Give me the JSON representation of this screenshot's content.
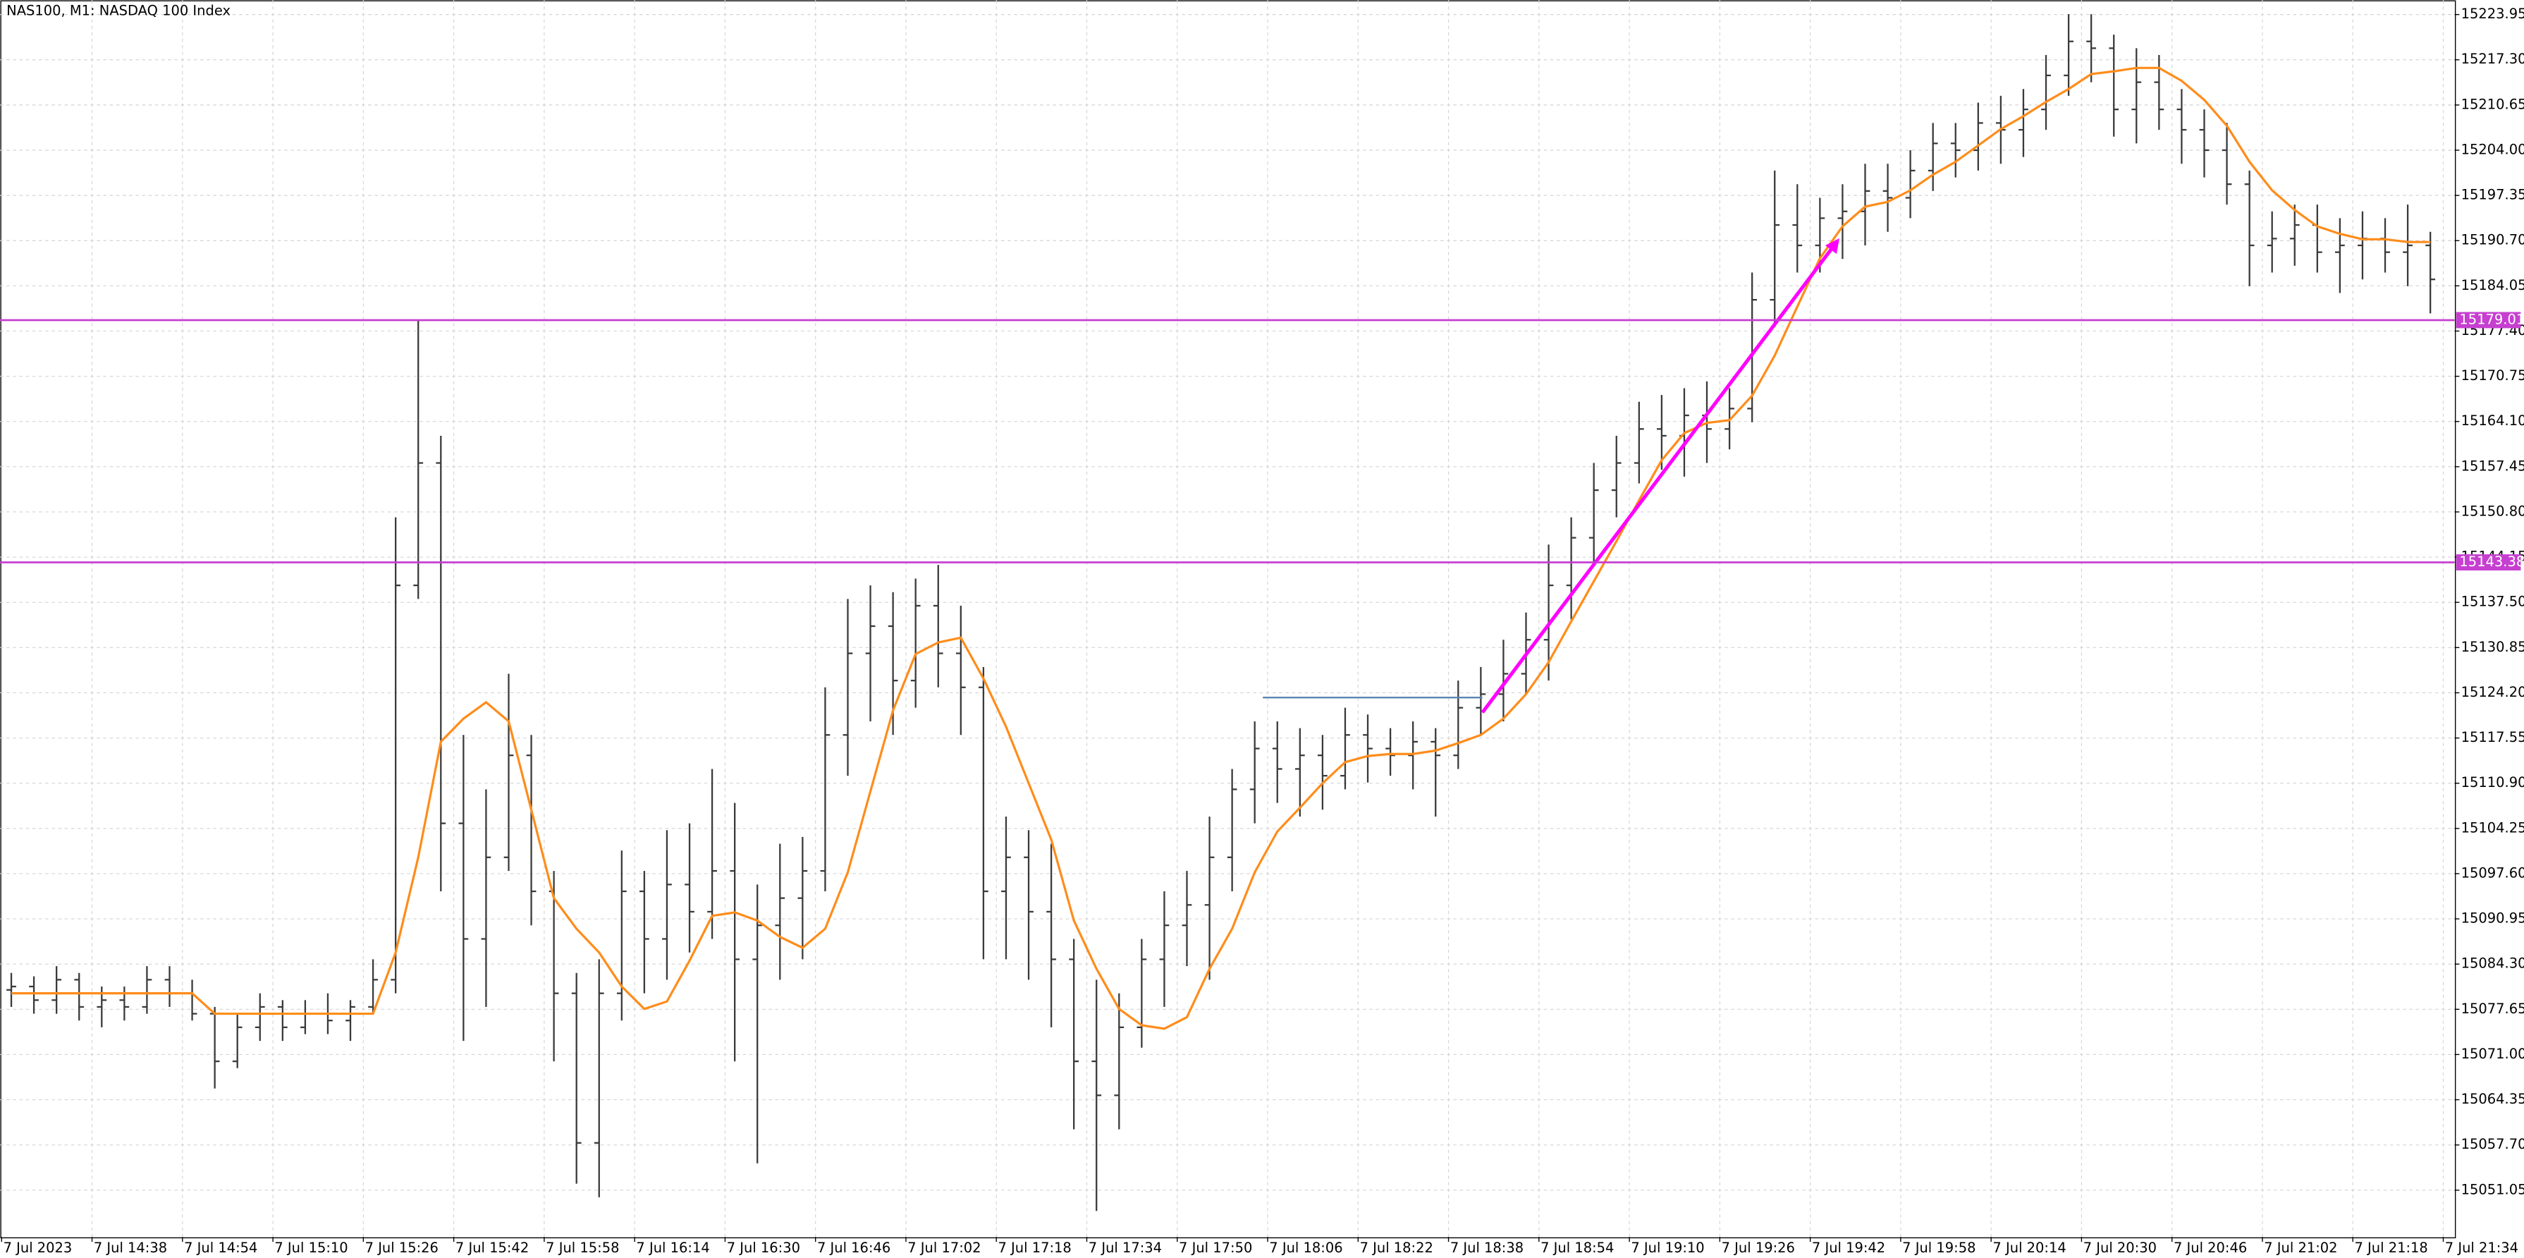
{
  "chart_data": {
    "type": "ohlc",
    "title": "NAS100, M1:  NASDAQ 100 Index",
    "bar_color": "#3a3a3a",
    "ma_color": "#ff8c1a",
    "level_color": "#c63fd0",
    "trend_color": "#ff00ff",
    "line_color": "#5b84b1",
    "grid": true,
    "ylim": [
      15044.16,
      15226.09
    ],
    "yticks": [
      15223.95,
      {
        "value": 15217.3,
        "label": "15217.30"
      },
      15210.65,
      {
        "value": 15204.0,
        "label": "15204.00"
      },
      15197.35,
      {
        "value": 15190.7,
        "label": "15190.70"
      },
      15184.05,
      {
        "value": 15177.4,
        "label": "15177.40"
      },
      15170.75,
      {
        "value": 15164.1,
        "label": "15164.10"
      },
      15157.45,
      {
        "value": 15150.8,
        "label": "15150.80"
      },
      15144.15,
      {
        "value": 15137.5,
        "label": "15137.50"
      },
      15130.85,
      {
        "value": 15124.2,
        "label": "15124.20"
      },
      15117.55,
      {
        "value": 15110.9,
        "label": "15110.90"
      },
      15104.25,
      {
        "value": 15097.6,
        "label": "15097.60"
      },
      15090.95,
      {
        "value": 15084.3,
        "label": "15084.30"
      },
      15077.65,
      {
        "value": 15071.0,
        "label": "15071.00"
      },
      15064.35,
      {
        "value": 15057.7,
        "label": "15057.70"
      },
      15051.05
    ],
    "xticks": [
      "7 Jul 2023",
      "7 Jul 14:38",
      "7 Jul 14:54",
      "7 Jul 15:10",
      "7 Jul 15:26",
      "7 Jul 15:42",
      "7 Jul 15:58",
      "7 Jul 16:14",
      "7 Jul 16:30",
      "7 Jul 16:46",
      "7 Jul 17:02",
      "7 Jul 17:18",
      "7 Jul 17:34",
      "7 Jul 17:50",
      "7 Jul 18:06",
      "7 Jul 18:22",
      "7 Jul 18:38",
      "7 Jul 18:54",
      "7 Jul 19:10",
      "7 Jul 19:26",
      "7 Jul 19:42",
      "7 Jul 19:58",
      "7 Jul 20:14",
      "7 Jul 20:30",
      "7 Jul 20:46",
      "7 Jul 21:02",
      "7 Jul 21:18",
      "7 Jul 21:34"
    ],
    "levels": [
      15179.01,
      15143.38
    ],
    "trend": [
      15121.3,
      15190.7
    ],
    "line_level": 15123.5,
    "ohlc": [
      [
        15080.5,
        15083,
        15078,
        15081
      ],
      [
        15081,
        15082.5,
        15077,
        15079
      ],
      [
        15079,
        15084,
        15077,
        15082
      ],
      [
        15082,
        15083,
        15076,
        15078
      ],
      [
        15078,
        15081,
        15075,
        15079
      ],
      [
        15079,
        15081,
        15076,
        15078
      ],
      [
        15078,
        15084,
        15077,
        15082
      ],
      [
        15082,
        15084,
        15078,
        15080
      ],
      [
        15080,
        15082,
        15076,
        15077
      ],
      [
        15077,
        15078,
        15066,
        15070
      ],
      [
        15070,
        15077,
        15069,
        15075
      ],
      [
        15075,
        15080,
        15073,
        15078
      ],
      [
        15078,
        15079,
        15073,
        15075
      ],
      [
        15075,
        15079,
        15074,
        15077
      ],
      [
        15077,
        15080,
        15074,
        15076
      ],
      [
        15076,
        15079,
        15073,
        15078
      ],
      [
        15078,
        15085,
        15077,
        15082
      ],
      [
        15082,
        15150,
        15080,
        15140
      ],
      [
        15140,
        15179,
        15138,
        15158
      ],
      [
        15158,
        15162,
        15095,
        15105
      ],
      [
        15105,
        15118,
        15073,
        15088
      ],
      [
        15088,
        15110,
        15078,
        15100
      ],
      [
        15100,
        15127,
        15098,
        15115
      ],
      [
        15115,
        15118,
        15090,
        15095
      ],
      [
        15095,
        15098,
        15070,
        15080
      ],
      [
        15080,
        15083,
        15052,
        15058
      ],
      [
        15058,
        15085,
        15050,
        15080
      ],
      [
        15080,
        15101,
        15076,
        15095
      ],
      [
        15095,
        15098,
        15080,
        15088
      ],
      [
        15088,
        15104,
        15082,
        15096
      ],
      [
        15096,
        15105,
        15086,
        15092
      ],
      [
        15092,
        15113,
        15088,
        15098
      ],
      [
        15098,
        15108,
        15070,
        15085
      ],
      [
        15085,
        15096,
        15055,
        15090
      ],
      [
        15090,
        15102,
        15082,
        15094
      ],
      [
        15094,
        15103,
        15085,
        15098
      ],
      [
        15098,
        15125,
        15095,
        15118
      ],
      [
        15118,
        15138,
        15112,
        15130
      ],
      [
        15130,
        15140,
        15120,
        15134
      ],
      [
        15134,
        15139,
        15118,
        15126
      ],
      [
        15126,
        15141,
        15122,
        15137
      ],
      [
        15137,
        15143,
        15125,
        15130
      ],
      [
        15130,
        15137,
        15118,
        15125
      ],
      [
        15125,
        15128,
        15085,
        15095
      ],
      [
        15095,
        15106,
        15085,
        15100
      ],
      [
        15100,
        15104,
        15082,
        15092
      ],
      [
        15092,
        15102,
        15075,
        15085
      ],
      [
        15085,
        15088,
        15060,
        15070
      ],
      [
        15070,
        15082,
        15048,
        15065
      ],
      [
        15065,
        15080,
        15060,
        15075
      ],
      [
        15075,
        15088,
        15072,
        15085
      ],
      [
        15085,
        15095,
        15078,
        15090
      ],
      [
        15090,
        15098,
        15084,
        15093
      ],
      [
        15093,
        15106,
        15082,
        15100
      ],
      [
        15100,
        15113,
        15095,
        15110
      ],
      [
        15110,
        15120,
        15105,
        15116
      ],
      [
        15116,
        15120,
        15108,
        15113
      ],
      [
        15113,
        15119,
        15106,
        15115
      ],
      [
        15115,
        15118,
        15107,
        15112
      ],
      [
        15112,
        15122,
        15110,
        15118
      ],
      [
        15118,
        15121,
        15111,
        15116
      ],
      [
        15116,
        15119,
        15112,
        15115
      ],
      [
        15115,
        15120,
        15110,
        15117
      ],
      [
        15117,
        15119,
        15106,
        15115
      ],
      [
        15115,
        15126,
        15113,
        15122
      ],
      [
        15122,
        15128,
        15118,
        15124
      ],
      [
        15124,
        15132,
        15120,
        15127
      ],
      [
        15127,
        15136,
        15124,
        15132
      ],
      [
        15132,
        15146,
        15126,
        15140
      ],
      [
        15140,
        15150,
        15135,
        15147
      ],
      [
        15147,
        15158,
        15143,
        15154
      ],
      [
        15154,
        15162,
        15150,
        15158
      ],
      [
        15158,
        15167,
        15155,
        15163
      ],
      [
        15163,
        15168,
        15157,
        15162
      ],
      [
        15162,
        15169,
        15156,
        15165
      ],
      [
        15165,
        15170,
        15158,
        15163
      ],
      [
        15163,
        15169,
        15160,
        15166
      ],
      [
        15166,
        15186,
        15164,
        15182
      ],
      [
        15182,
        15201,
        15178,
        15193
      ],
      [
        15193,
        15199,
        15186,
        15190
      ],
      [
        15190,
        15197,
        15186,
        15194
      ],
      [
        15194,
        15199,
        15188,
        15195
      ],
      [
        15195,
        15202,
        15190,
        15198
      ],
      [
        15198,
        15202,
        15192,
        15197
      ],
      [
        15197,
        15204,
        15194,
        15201
      ],
      [
        15201,
        15208,
        15198,
        15205
      ],
      [
        15205,
        15208,
        15200,
        15204
      ],
      [
        15204,
        15211,
        15201,
        15208
      ],
      [
        15208,
        15212,
        15202,
        15207
      ],
      [
        15207,
        15213,
        15203,
        15210
      ],
      [
        15210,
        15218,
        15207,
        15215
      ],
      [
        15215,
        15224,
        15212,
        15220
      ],
      [
        15220,
        15224,
        15214,
        15219
      ],
      [
        15219,
        15221,
        15206,
        15210
      ],
      [
        15210,
        15219,
        15205,
        15214
      ],
      [
        15214,
        15218,
        15207,
        15210
      ],
      [
        15210,
        15213,
        15202,
        15207
      ],
      [
        15207,
        15210,
        15200,
        15204
      ],
      [
        15204,
        15208,
        15196,
        15199
      ],
      [
        15199,
        15201,
        15184,
        15190
      ],
      [
        15190,
        15195,
        15186,
        15191
      ],
      [
        15191,
        15196,
        15187,
        15193
      ],
      [
        15193,
        15196,
        15186,
        15189
      ],
      [
        15189,
        15194,
        15183,
        15190
      ],
      [
        15190,
        15195,
        15185,
        15191
      ],
      [
        15191,
        15194,
        15186,
        15189
      ],
      [
        15189,
        15196,
        15184,
        15190
      ],
      [
        15190,
        15192,
        15180,
        15185
      ]
    ],
    "ma": [
      15080,
      15080,
      15080,
      15080,
      15080,
      15080,
      15080,
      15080,
      15080,
      15077,
      15077,
      15077,
      15077,
      15077,
      15077,
      15077,
      15077,
      15086,
      15100,
      15117,
      15120.4,
      15122.8,
      15120,
      15107,
      15094,
      15089.5,
      15086,
      15081,
      15077.7,
      15078.8,
      15084.8,
      15091.4,
      15091.9,
      15090.7,
      15088.3,
      15086.7,
      15089.5,
      15097.8,
      15109.7,
      15121.6,
      15129.9,
      15131.6,
      15132.3,
      15126.3,
      15119.2,
      15110.9,
      15102.6,
      15090.7,
      15083.6,
      15077.7,
      15075.3,
      15074.8,
      15076.5,
      15083.6,
      15089.5,
      15097.8,
      15103.8,
      15107.3,
      15110.9,
      15114,
      15114.9,
      15115.2,
      15115.2,
      15115.7,
      15116.8,
      15118,
      15120.4,
      15124,
      15128.7,
      15134.7,
      15140.6,
      15146.5,
      15152.5,
      15158.4,
      15162.4,
      15163.9,
      15164.3,
      15167.9,
      15173.8,
      15181,
      15188.1,
      15192.8,
      15195.7,
      15196.4,
      15198.1,
      15200.4,
      15202.3,
      15204.7,
      15207.1,
      15209,
      15211.1,
      15213,
      15215.2,
      15215.6,
      15216.1,
      15216.1,
      15214.2,
      15211.4,
      15207.6,
      15202.3,
      15198.1,
      15195.2,
      15192.8,
      15191.7,
      15190.9,
      15190.9,
      15190.5,
      15190.5
    ]
  }
}
